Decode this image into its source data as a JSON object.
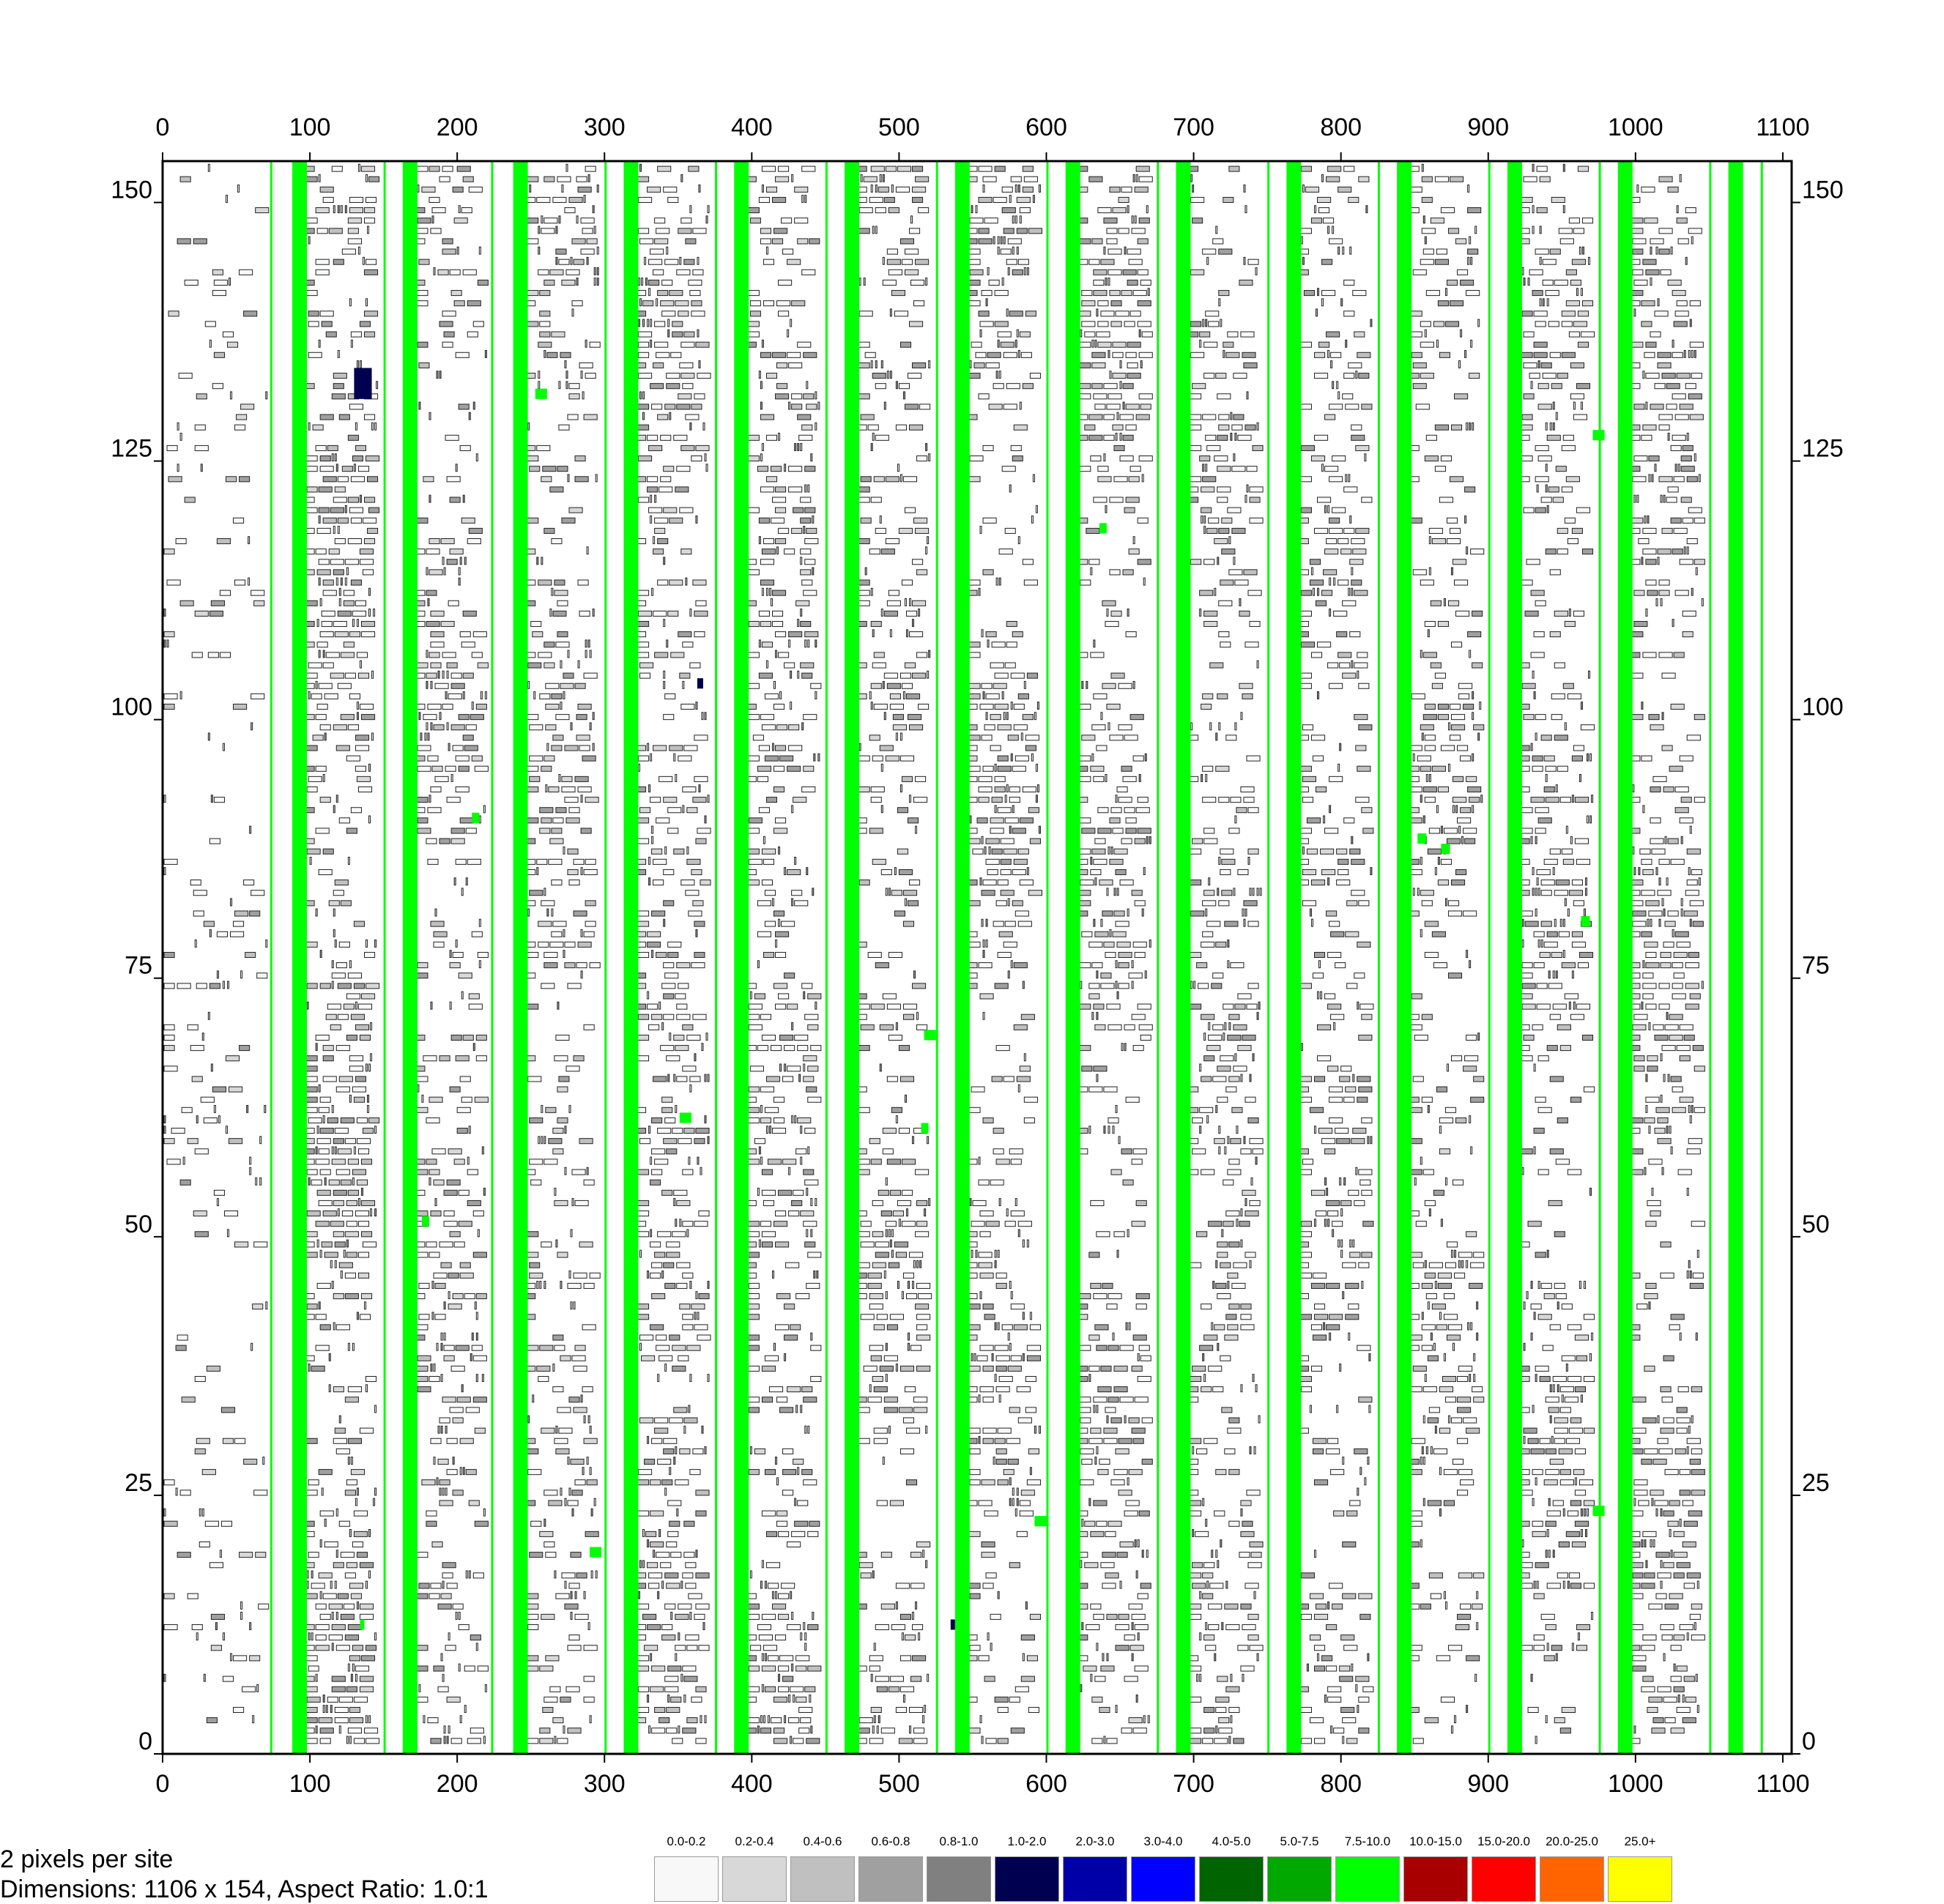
{
  "chart_data": {
    "type": "heatmap",
    "x_ticks": [
      0,
      100,
      200,
      300,
      400,
      500,
      600,
      700,
      800,
      900,
      1000,
      1100
    ],
    "y_ticks": [
      0,
      25,
      50,
      75,
      100,
      125,
      150
    ],
    "xlim": [
      0,
      1106
    ],
    "ylim": [
      0,
      154
    ],
    "grid": false,
    "columns": {
      "thin_green_at": [
        73,
        150,
        223,
        300,
        375,
        450,
        525,
        600,
        675,
        750,
        825,
        900,
        975,
        1050,
        1085
      ],
      "thick_green_at": [
        93,
        168,
        243,
        318,
        393,
        468,
        543,
        618,
        693,
        768,
        843,
        918,
        993,
        1068
      ],
      "thin_color": "#00ff00",
      "thick_color": "#00ff00"
    },
    "row_bands": [
      {
        "x": [
          0,
          73
        ],
        "density": 0.15
      },
      {
        "x": [
          95,
          148
        ],
        "density": 0.55
      },
      {
        "x": [
          170,
          222
        ],
        "density": 0.4
      },
      {
        "x": [
          245,
          298
        ],
        "density": 0.4
      },
      {
        "x": [
          320,
          373
        ],
        "density": 0.45
      },
      {
        "x": [
          395,
          448
        ],
        "density": 0.45
      },
      {
        "x": [
          470,
          523
        ],
        "density": 0.4
      },
      {
        "x": [
          545,
          598
        ],
        "density": 0.45
      },
      {
        "x": [
          620,
          673
        ],
        "density": 0.45
      },
      {
        "x": [
          695,
          748
        ],
        "density": 0.4
      },
      {
        "x": [
          770,
          823
        ],
        "density": 0.4
      },
      {
        "x": [
          845,
          898
        ],
        "density": 0.35
      },
      {
        "x": [
          920,
          973
        ],
        "density": 0.4
      },
      {
        "x": [
          995,
          1048
        ],
        "density": 0.5
      }
    ],
    "highlights": [
      {
        "x": 130,
        "y": 131,
        "w": 12,
        "h": 3,
        "bin": "1.0-2.0"
      },
      {
        "x": 134,
        "y": 12,
        "w": 3,
        "h": 1,
        "bin": "7.5-10.0"
      },
      {
        "x": 176,
        "y": 51,
        "w": 5,
        "h": 1,
        "bin": "7.5-10.0"
      },
      {
        "x": 210,
        "y": 90,
        "w": 5,
        "h": 1,
        "bin": "7.5-10.0"
      },
      {
        "x": 253,
        "y": 131,
        "w": 8,
        "h": 1,
        "bin": "7.5-10.0"
      },
      {
        "x": 290,
        "y": 19,
        "w": 8,
        "h": 1,
        "bin": "7.5-10.0"
      },
      {
        "x": 351,
        "y": 61,
        "w": 8,
        "h": 1,
        "bin": "7.5-10.0"
      },
      {
        "x": 363,
        "y": 103,
        "w": 4,
        "h": 1,
        "bin": "1.0-2.0"
      },
      {
        "x": 515,
        "y": 60,
        "w": 5,
        "h": 1,
        "bin": "7.5-10.0"
      },
      {
        "x": 517,
        "y": 69,
        "w": 8,
        "h": 1,
        "bin": "7.5-10.0"
      },
      {
        "x": 535,
        "y": 12,
        "w": 3,
        "h": 1,
        "bin": "1.0-2.0"
      },
      {
        "x": 592,
        "y": 22,
        "w": 8,
        "h": 1,
        "bin": "7.5-10.0"
      },
      {
        "x": 636,
        "y": 118,
        "w": 5,
        "h": 1,
        "bin": "7.5-10.0"
      },
      {
        "x": 852,
        "y": 88,
        "w": 6,
        "h": 1,
        "bin": "7.5-10.0"
      },
      {
        "x": 868,
        "y": 87,
        "w": 6,
        "h": 1,
        "bin": "7.5-10.0"
      },
      {
        "x": 963,
        "y": 80,
        "w": 6,
        "h": 1,
        "bin": "7.5-10.0"
      },
      {
        "x": 971,
        "y": 23,
        "w": 8,
        "h": 1,
        "bin": "7.5-10.0"
      },
      {
        "x": 971,
        "y": 127,
        "w": 8,
        "h": 1,
        "bin": "7.5-10.0"
      }
    ],
    "legend": {
      "bins": [
        {
          "label": "0.0-0.2",
          "color": "#f8f8f8"
        },
        {
          "label": "0.2-0.4",
          "color": "#d8d8d8"
        },
        {
          "label": "0.4-0.6",
          "color": "#c0c0c0"
        },
        {
          "label": "0.6-0.8",
          "color": "#a0a0a0"
        },
        {
          "label": "0.8-1.0",
          "color": "#808080"
        },
        {
          "label": "1.0-2.0",
          "color": "#000050"
        },
        {
          "label": "2.0-3.0",
          "color": "#0000a8"
        },
        {
          "label": "3.0-4.0",
          "color": "#0000ff"
        },
        {
          "label": "4.0-5.0",
          "color": "#006400"
        },
        {
          "label": "5.0-7.5",
          "color": "#00a800"
        },
        {
          "label": "7.5-10.0",
          "color": "#00ff00"
        },
        {
          "label": "10.0-15.0",
          "color": "#a80000"
        },
        {
          "label": "15.0-20.0",
          "color": "#ff0000"
        },
        {
          "label": "20.0-25.0",
          "color": "#ff6400"
        },
        {
          "label": "25.0+",
          "color": "#ffff00"
        }
      ]
    }
  },
  "info": {
    "line1": "2 pixels per site",
    "line2": "Dimensions: 1106 x 154, Aspect Ratio: 1.0:1"
  }
}
